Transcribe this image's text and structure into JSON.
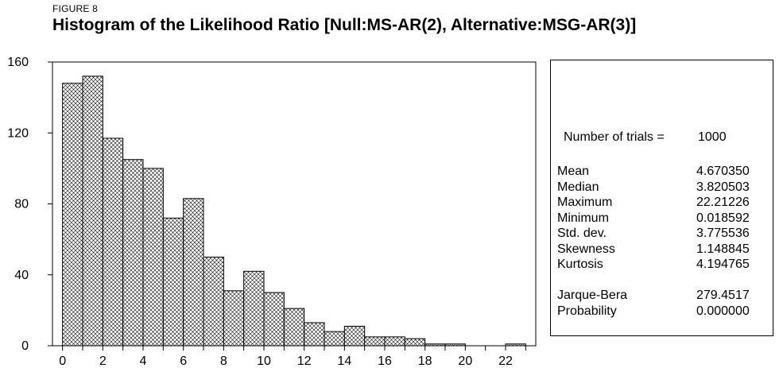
{
  "figure_label": "FIGURE 8",
  "title": "Histogram of the Likelihood Ratio [Null:MS-AR(2), Alternative:MSG-AR(3)]",
  "stats": {
    "trials_label": "Number of trials =",
    "trials_value": "1000",
    "rows": [
      {
        "label": "Mean",
        "value": "4.670350"
      },
      {
        "label": "Median",
        "value": "3.820503"
      },
      {
        "label": "Maximum",
        "value": "22.21226"
      },
      {
        "label": "Minimum",
        "value": "0.018592"
      },
      {
        "label": "Std. dev.",
        "value": "3.775536"
      },
      {
        "label": "Skewness",
        "value": "1.148845"
      },
      {
        "label": "Kurtosis",
        "value": "4.194765"
      }
    ],
    "test_rows": [
      {
        "label": "Jarque-Bera",
        "value": "279.4517"
      },
      {
        "label": "Probability",
        "value": "0.000000"
      }
    ]
  },
  "chart_data": {
    "type": "bar",
    "title": "Histogram of the Likelihood Ratio [Null:MS-AR(2), Alternative:MSG-AR(3)]",
    "xlabel": "",
    "ylabel": "",
    "bin_width": 1,
    "bin_starts": [
      0,
      1,
      2,
      3,
      4,
      5,
      6,
      7,
      8,
      9,
      10,
      11,
      12,
      13,
      14,
      15,
      16,
      17,
      18,
      19,
      20,
      21,
      22
    ],
    "values": [
      148,
      152,
      117,
      105,
      100,
      72,
      83,
      50,
      31,
      42,
      30,
      21,
      13,
      8,
      11,
      5,
      5,
      4,
      1,
      1,
      0,
      0,
      1
    ],
    "xlim": [
      -0.5,
      23.5
    ],
    "ylim": [
      0,
      160
    ],
    "xticks": [
      0,
      2,
      4,
      6,
      8,
      10,
      12,
      14,
      16,
      18,
      20,
      22
    ],
    "yticks": [
      0,
      40,
      80,
      120,
      160
    ],
    "fill_pattern": "crosshatch",
    "colors": {
      "bar_fill": "#ffffff",
      "hatch": "#000000",
      "edge": "#000000"
    },
    "grid": false
  }
}
